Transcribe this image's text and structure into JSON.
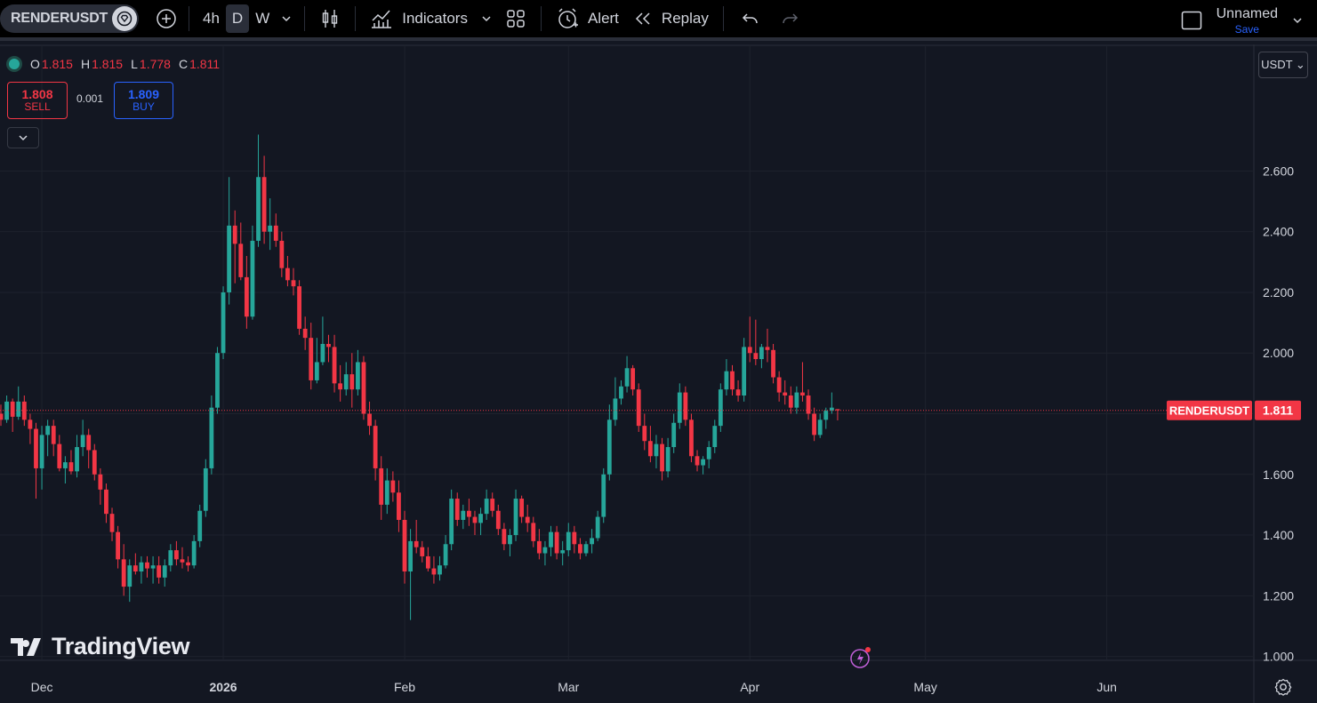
{
  "toolbar": {
    "symbol": "RENDERUSDT",
    "intervals": [
      "4h",
      "D",
      "W"
    ],
    "active_interval": "D",
    "indicators_label": "Indicators",
    "alert_label": "Alert",
    "replay_label": "Replay",
    "layout_name": "Unnamed",
    "save_label": "Save"
  },
  "legend": {
    "open_label": "O",
    "open": "1.815",
    "high_label": "H",
    "high": "1.815",
    "low_label": "L",
    "low": "1.778",
    "close_label": "C",
    "close": "1.811"
  },
  "trade": {
    "sell_price": "1.808",
    "sell_label": "SELL",
    "spread": "0.001",
    "buy_price": "1.809",
    "buy_label": "BUY"
  },
  "currency": "USDT ⌄",
  "watermark": "TradingView",
  "colors": {
    "up": "#26a69a",
    "down": "#f23645",
    "background": "#131722",
    "grid": "#1f2330",
    "accent": "#2962ff"
  },
  "chart_data": {
    "type": "candlestick",
    "symbol": "RENDERUSDT",
    "last_price": 1.811,
    "last_price_label": "1.811",
    "price_label": "RENDERUSDT",
    "y_ticks": [
      1.0,
      1.2,
      1.4,
      1.6,
      1.8,
      2.0,
      2.2,
      2.4,
      2.6
    ],
    "y_tick_labels": [
      "1.000",
      "1.200",
      "1.400",
      "1.600",
      "",
      "2.000",
      "2.200",
      "2.400",
      "2.600"
    ],
    "ylim": [
      0.99,
      2.9
    ],
    "x_labels": [
      {
        "label": "Dec",
        "date": "2025-12-01",
        "bold": false
      },
      {
        "label": "2026",
        "date": "2026-01-01",
        "bold": true
      },
      {
        "label": "Feb",
        "date": "2026-02-01",
        "bold": false
      },
      {
        "label": "Mar",
        "date": "2026-03-01",
        "bold": false
      },
      {
        "label": "Apr",
        "date": "2026-04-01",
        "bold": false
      },
      {
        "label": "May",
        "date": "2026-05-01",
        "bold": false
      },
      {
        "label": "Jun",
        "date": "2026-06-01",
        "bold": false
      }
    ],
    "first_date": "2025-11-24",
    "candles": [
      [
        1.8,
        1.83,
        1.76,
        1.78
      ],
      [
        1.78,
        1.86,
        1.77,
        1.84
      ],
      [
        1.84,
        1.85,
        1.74,
        1.79
      ],
      [
        1.79,
        1.89,
        1.78,
        1.84
      ],
      [
        1.84,
        1.86,
        1.76,
        1.78
      ],
      [
        1.78,
        1.8,
        1.7,
        1.75
      ],
      [
        1.75,
        1.77,
        1.52,
        1.62
      ],
      [
        1.62,
        1.76,
        1.55,
        1.73
      ],
      [
        1.73,
        1.78,
        1.66,
        1.76
      ],
      [
        1.76,
        1.78,
        1.66,
        1.7
      ],
      [
        1.7,
        1.73,
        1.61,
        1.62
      ],
      [
        1.62,
        1.66,
        1.57,
        1.64
      ],
      [
        1.64,
        1.68,
        1.6,
        1.61
      ],
      [
        1.61,
        1.73,
        1.59,
        1.69
      ],
      [
        1.69,
        1.78,
        1.66,
        1.73
      ],
      [
        1.73,
        1.75,
        1.62,
        1.68
      ],
      [
        1.68,
        1.7,
        1.58,
        1.6
      ],
      [
        1.6,
        1.62,
        1.5,
        1.55
      ],
      [
        1.55,
        1.57,
        1.44,
        1.47
      ],
      [
        1.47,
        1.49,
        1.38,
        1.41
      ],
      [
        1.41,
        1.43,
        1.29,
        1.32
      ],
      [
        1.32,
        1.37,
        1.2,
        1.23
      ],
      [
        1.23,
        1.32,
        1.18,
        1.3
      ],
      [
        1.3,
        1.34,
        1.27,
        1.28
      ],
      [
        1.28,
        1.33,
        1.24,
        1.31
      ],
      [
        1.31,
        1.33,
        1.26,
        1.29
      ],
      [
        1.29,
        1.33,
        1.24,
        1.3
      ],
      [
        1.3,
        1.33,
        1.24,
        1.26
      ],
      [
        1.26,
        1.32,
        1.23,
        1.3
      ],
      [
        1.3,
        1.37,
        1.28,
        1.35
      ],
      [
        1.35,
        1.38,
        1.3,
        1.32
      ],
      [
        1.32,
        1.36,
        1.29,
        1.31
      ],
      [
        1.31,
        1.33,
        1.28,
        1.3
      ],
      [
        1.3,
        1.4,
        1.29,
        1.38
      ],
      [
        1.38,
        1.5,
        1.36,
        1.48
      ],
      [
        1.48,
        1.65,
        1.46,
        1.62
      ],
      [
        1.62,
        1.86,
        1.6,
        1.82
      ],
      [
        1.82,
        2.02,
        1.8,
        2.0
      ],
      [
        2.0,
        2.22,
        1.98,
        2.2
      ],
      [
        2.2,
        2.58,
        2.16,
        2.42
      ],
      [
        2.42,
        2.47,
        2.23,
        2.36
      ],
      [
        2.36,
        2.43,
        2.24,
        2.25
      ],
      [
        2.25,
        2.32,
        2.08,
        2.12
      ],
      [
        2.12,
        2.42,
        2.11,
        2.37
      ],
      [
        2.37,
        2.72,
        2.35,
        2.58
      ],
      [
        2.58,
        2.65,
        2.36,
        2.4
      ],
      [
        2.4,
        2.51,
        2.34,
        2.42
      ],
      [
        2.42,
        2.46,
        2.35,
        2.37
      ],
      [
        2.37,
        2.4,
        2.25,
        2.28
      ],
      [
        2.28,
        2.32,
        2.22,
        2.24
      ],
      [
        2.24,
        2.28,
        2.19,
        2.22
      ],
      [
        2.22,
        2.24,
        2.06,
        2.08
      ],
      [
        2.08,
        2.12,
        2.01,
        2.05
      ],
      [
        2.05,
        2.1,
        1.88,
        1.91
      ],
      [
        1.91,
        2.05,
        1.9,
        1.97
      ],
      [
        1.97,
        2.12,
        1.96,
        2.03
      ],
      [
        2.03,
        2.06,
        1.97,
        2.02
      ],
      [
        2.02,
        2.06,
        1.87,
        1.9
      ],
      [
        1.9,
        1.96,
        1.84,
        1.88
      ],
      [
        1.88,
        1.97,
        1.86,
        1.93
      ],
      [
        1.93,
        2.0,
        1.82,
        1.88
      ],
      [
        1.88,
        2.01,
        1.86,
        1.97
      ],
      [
        1.97,
        1.99,
        1.78,
        1.8
      ],
      [
        1.8,
        1.84,
        1.73,
        1.76
      ],
      [
        1.76,
        1.78,
        1.58,
        1.62
      ],
      [
        1.62,
        1.66,
        1.45,
        1.5
      ],
      [
        1.5,
        1.62,
        1.47,
        1.58
      ],
      [
        1.58,
        1.61,
        1.51,
        1.54
      ],
      [
        1.54,
        1.58,
        1.41,
        1.45
      ],
      [
        1.45,
        1.48,
        1.24,
        1.28
      ],
      [
        1.28,
        1.42,
        1.12,
        1.38
      ],
      [
        1.38,
        1.45,
        1.34,
        1.36
      ],
      [
        1.36,
        1.38,
        1.31,
        1.33
      ],
      [
        1.33,
        1.36,
        1.28,
        1.29
      ],
      [
        1.29,
        1.33,
        1.24,
        1.27
      ],
      [
        1.27,
        1.33,
        1.25,
        1.3
      ],
      [
        1.3,
        1.4,
        1.29,
        1.37
      ],
      [
        1.37,
        1.55,
        1.35,
        1.52
      ],
      [
        1.52,
        1.54,
        1.43,
        1.45
      ],
      [
        1.45,
        1.5,
        1.42,
        1.48
      ],
      [
        1.48,
        1.52,
        1.43,
        1.46
      ],
      [
        1.46,
        1.48,
        1.4,
        1.44
      ],
      [
        1.44,
        1.49,
        1.4,
        1.47
      ],
      [
        1.47,
        1.55,
        1.45,
        1.52
      ],
      [
        1.52,
        1.54,
        1.46,
        1.48
      ],
      [
        1.48,
        1.5,
        1.4,
        1.42
      ],
      [
        1.42,
        1.44,
        1.35,
        1.37
      ],
      [
        1.37,
        1.42,
        1.33,
        1.4
      ],
      [
        1.4,
        1.55,
        1.38,
        1.52
      ],
      [
        1.52,
        1.53,
        1.44,
        1.46
      ],
      [
        1.46,
        1.5,
        1.41,
        1.44
      ],
      [
        1.44,
        1.46,
        1.36,
        1.38
      ],
      [
        1.38,
        1.42,
        1.32,
        1.34
      ],
      [
        1.34,
        1.38,
        1.3,
        1.36
      ],
      [
        1.36,
        1.43,
        1.33,
        1.41
      ],
      [
        1.41,
        1.43,
        1.32,
        1.34
      ],
      [
        1.34,
        1.38,
        1.3,
        1.35
      ],
      [
        1.35,
        1.44,
        1.33,
        1.41
      ],
      [
        1.41,
        1.43,
        1.34,
        1.37
      ],
      [
        1.37,
        1.39,
        1.32,
        1.34
      ],
      [
        1.34,
        1.38,
        1.33,
        1.37
      ],
      [
        1.37,
        1.42,
        1.34,
        1.39
      ],
      [
        1.39,
        1.48,
        1.38,
        1.46
      ],
      [
        1.46,
        1.62,
        1.44,
        1.6
      ],
      [
        1.6,
        1.83,
        1.58,
        1.78
      ],
      [
        1.78,
        1.92,
        1.76,
        1.85
      ],
      [
        1.85,
        1.91,
        1.83,
        1.89
      ],
      [
        1.89,
        1.99,
        1.87,
        1.95
      ],
      [
        1.95,
        1.96,
        1.86,
        1.88
      ],
      [
        1.88,
        1.9,
        1.74,
        1.76
      ],
      [
        1.76,
        1.8,
        1.68,
        1.71
      ],
      [
        1.71,
        1.76,
        1.64,
        1.66
      ],
      [
        1.66,
        1.73,
        1.62,
        1.7
      ],
      [
        1.7,
        1.72,
        1.58,
        1.61
      ],
      [
        1.61,
        1.72,
        1.59,
        1.69
      ],
      [
        1.69,
        1.8,
        1.67,
        1.77
      ],
      [
        1.77,
        1.9,
        1.75,
        1.87
      ],
      [
        1.87,
        1.89,
        1.76,
        1.78
      ],
      [
        1.78,
        1.8,
        1.64,
        1.66
      ],
      [
        1.66,
        1.68,
        1.61,
        1.63
      ],
      [
        1.63,
        1.66,
        1.6,
        1.65
      ],
      [
        1.65,
        1.71,
        1.62,
        1.69
      ],
      [
        1.69,
        1.78,
        1.67,
        1.76
      ],
      [
        1.76,
        1.9,
        1.74,
        1.88
      ],
      [
        1.88,
        1.98,
        1.86,
        1.94
      ],
      [
        1.94,
        1.96,
        1.86,
        1.88
      ],
      [
        1.88,
        1.91,
        1.84,
        1.86
      ],
      [
        1.86,
        2.05,
        1.84,
        2.02
      ],
      [
        2.02,
        2.12,
        1.97,
        2.0
      ],
      [
        2.0,
        2.11,
        1.96,
        1.98
      ],
      [
        1.98,
        2.03,
        1.95,
        2.02
      ],
      [
        2.02,
        2.08,
        1.97,
        2.01
      ],
      [
        2.01,
        2.03,
        1.9,
        1.92
      ],
      [
        1.92,
        1.94,
        1.84,
        1.87
      ],
      [
        1.87,
        1.91,
        1.83,
        1.86
      ],
      [
        1.86,
        1.89,
        1.8,
        1.82
      ],
      [
        1.82,
        1.89,
        1.8,
        1.87
      ],
      [
        1.87,
        1.97,
        1.84,
        1.86
      ],
      [
        1.86,
        1.88,
        1.78,
        1.8
      ],
      [
        1.8,
        1.82,
        1.71,
        1.73
      ],
      [
        1.73,
        1.8,
        1.72,
        1.78
      ],
      [
        1.78,
        1.82,
        1.75,
        1.81
      ],
      [
        1.81,
        1.87,
        1.8,
        1.82
      ],
      [
        1.815,
        1.815,
        1.778,
        1.811
      ]
    ]
  }
}
